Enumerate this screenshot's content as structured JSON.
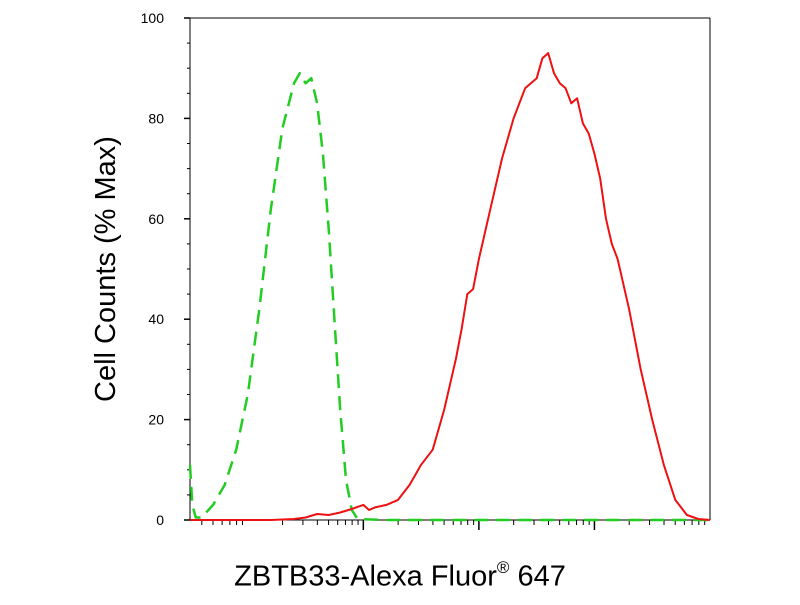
{
  "chart_data": {
    "type": "line",
    "title": "",
    "ylabel": "Cell Counts (% Max)",
    "xlabel": {
      "text": "ZBTB33-Alexa Fluor",
      "superscript": "®",
      "suffix": " 647"
    },
    "y_ticks": [
      0,
      20,
      40,
      60,
      80,
      100
    ],
    "ylim": [
      0,
      100
    ],
    "xscale": "log",
    "xlim": [
      -1.5,
      3
    ],
    "x_major_ticks": [
      0,
      1,
      2
    ],
    "x_minor_ticks_per_decade": [
      2,
      3,
      4,
      5,
      6,
      7,
      8,
      9
    ],
    "grid": false,
    "series": [
      {
        "line_style": "dashed",
        "color": "#22cc22",
        "points": [
          [
            -1.5,
            11
          ],
          [
            -1.48,
            3
          ],
          [
            -1.45,
            0.5
          ],
          [
            -1.4,
            0.5
          ],
          [
            -1.3,
            3
          ],
          [
            -1.2,
            7
          ],
          [
            -1.1,
            14
          ],
          [
            -1.0,
            25
          ],
          [
            -0.9,
            42
          ],
          [
            -0.8,
            62
          ],
          [
            -0.7,
            78
          ],
          [
            -0.6,
            87
          ],
          [
            -0.55,
            89
          ],
          [
            -0.5,
            87
          ],
          [
            -0.45,
            88
          ],
          [
            -0.4,
            83
          ],
          [
            -0.35,
            73
          ],
          [
            -0.3,
            58
          ],
          [
            -0.25,
            40
          ],
          [
            -0.2,
            22
          ],
          [
            -0.15,
            8
          ],
          [
            -0.1,
            2
          ],
          [
            -0.05,
            0.2
          ],
          [
            0.2,
            0
          ],
          [
            1.0,
            0
          ],
          [
            2.0,
            0
          ],
          [
            2.5,
            0
          ],
          [
            3.0,
            0
          ]
        ]
      },
      {
        "line_style": "solid",
        "color": "#ee1111",
        "points": [
          [
            -1.5,
            0
          ],
          [
            -0.8,
            0
          ],
          [
            -0.6,
            0.2
          ],
          [
            -0.5,
            0.5
          ],
          [
            -0.4,
            1.2
          ],
          [
            -0.3,
            1
          ],
          [
            -0.2,
            1.5
          ],
          [
            -0.1,
            2.2
          ],
          [
            0.0,
            3
          ],
          [
            0.05,
            2
          ],
          [
            0.1,
            2.5
          ],
          [
            0.2,
            3
          ],
          [
            0.3,
            4
          ],
          [
            0.4,
            7
          ],
          [
            0.5,
            11
          ],
          [
            0.6,
            14
          ],
          [
            0.7,
            22
          ],
          [
            0.8,
            32
          ],
          [
            0.85,
            38
          ],
          [
            0.9,
            45
          ],
          [
            0.95,
            46
          ],
          [
            1.0,
            52
          ],
          [
            1.1,
            62
          ],
          [
            1.2,
            72
          ],
          [
            1.3,
            80
          ],
          [
            1.4,
            86
          ],
          [
            1.5,
            88
          ],
          [
            1.55,
            92
          ],
          [
            1.6,
            93
          ],
          [
            1.65,
            89
          ],
          [
            1.7,
            87
          ],
          [
            1.75,
            86
          ],
          [
            1.8,
            83
          ],
          [
            1.85,
            84
          ],
          [
            1.9,
            79
          ],
          [
            1.95,
            77
          ],
          [
            2.0,
            73
          ],
          [
            2.05,
            68
          ],
          [
            2.1,
            60
          ],
          [
            2.15,
            55
          ],
          [
            2.2,
            52
          ],
          [
            2.3,
            42
          ],
          [
            2.4,
            30
          ],
          [
            2.5,
            20
          ],
          [
            2.6,
            11
          ],
          [
            2.7,
            4
          ],
          [
            2.8,
            1
          ],
          [
            2.9,
            0.2
          ],
          [
            3.0,
            0
          ]
        ]
      }
    ]
  }
}
